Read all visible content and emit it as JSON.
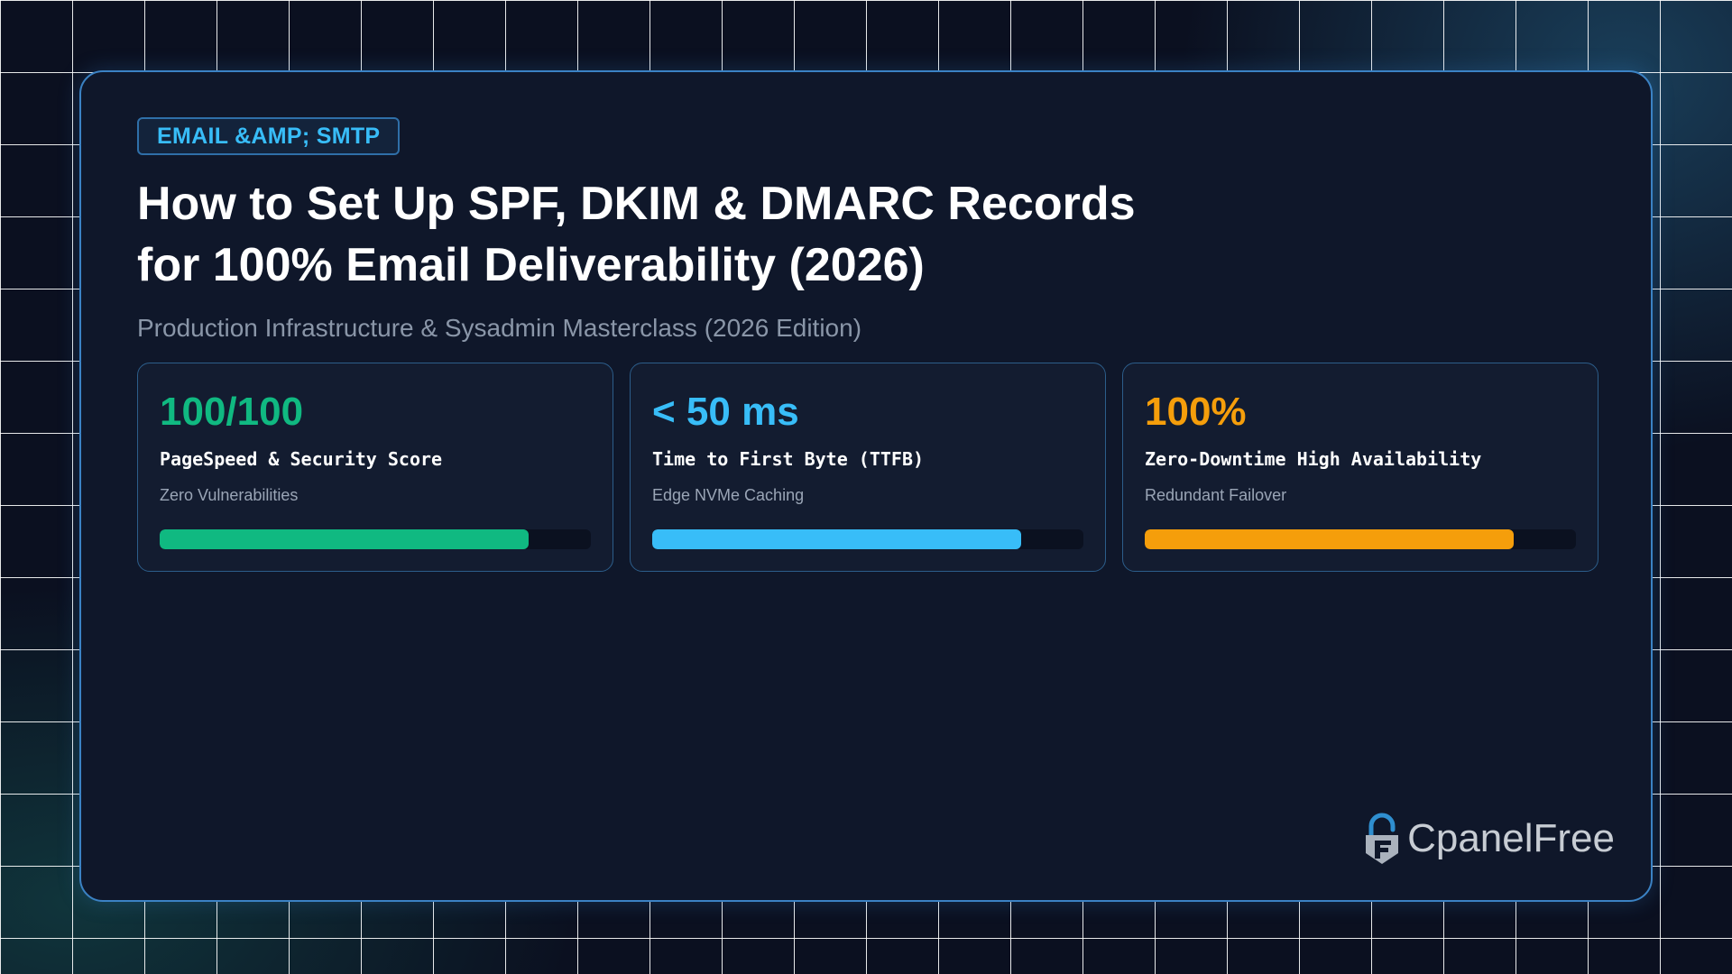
{
  "tag": {
    "label": "EMAIL &AMP; SMTP"
  },
  "title": {
    "line1": "How to Set Up SPF, DKIM & DMARC Records",
    "line2": "for 100% Email Deliverability (2026)"
  },
  "subtitle": "Production Infrastructure & Sysadmin Masterclass (2026 Edition)",
  "stats": [
    {
      "value": "100/100",
      "label": "PageSpeed & Security Score",
      "sub": "Zero Vulnerabilities",
      "color": "#10b981",
      "progress": 0.855
    },
    {
      "value": "< 50 ms",
      "label": "Time to First Byte (TTFB)",
      "sub": "Edge NVMe Caching",
      "color": "#38bdf8",
      "progress": 0.855
    },
    {
      "value": "100%",
      "label": "Zero-Downtime High Availability",
      "sub": "Redundant Failover",
      "color": "#f59e0b",
      "progress": 0.855
    }
  ],
  "logo": {
    "text": "CpanelFree",
    "icon": "padlock-f-logo-icon"
  }
}
